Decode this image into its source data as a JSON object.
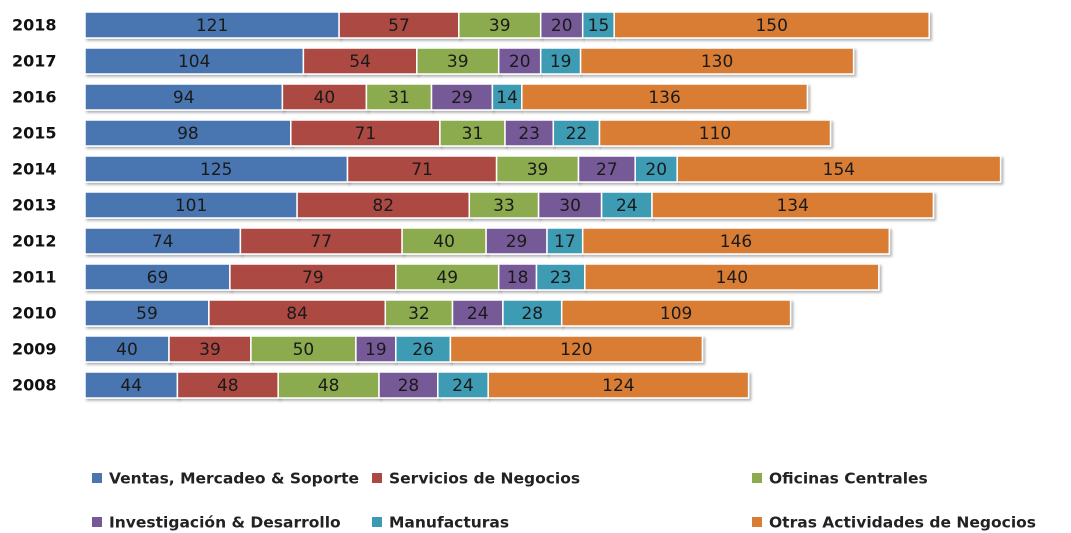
{
  "chart_data": {
    "type": "stacked-bar-horizontal",
    "categories": [
      "2018",
      "2017",
      "2016",
      "2015",
      "2014",
      "2013",
      "2012",
      "2011",
      "2010",
      "2009",
      "2008"
    ],
    "series": [
      {
        "name": "Ventas, Mercadeo & Soporte",
        "color": "#4a76b0",
        "values": [
          121,
          104,
          94,
          98,
          125,
          101,
          74,
          69,
          59,
          40,
          44
        ]
      },
      {
        "name": "Servicios de Negocios",
        "color": "#ac4843",
        "values": [
          57,
          54,
          40,
          71,
          71,
          82,
          77,
          79,
          84,
          39,
          48
        ]
      },
      {
        "name": "Oficinas Centrales",
        "color": "#8cab4f",
        "values": [
          39,
          39,
          31,
          31,
          39,
          33,
          40,
          49,
          32,
          50,
          48
        ]
      },
      {
        "name": "Investigación & Desarrollo",
        "color": "#765a97",
        "values": [
          20,
          20,
          29,
          23,
          27,
          30,
          29,
          18,
          24,
          19,
          28
        ]
      },
      {
        "name": "Manufacturas",
        "color": "#3c9bb3",
        "values": [
          15,
          19,
          14,
          22,
          20,
          24,
          17,
          23,
          28,
          26,
          24
        ]
      },
      {
        "name": "Otras Actividades de Negocios",
        "color": "#d97d35",
        "values": [
          150,
          130,
          136,
          110,
          154,
          134,
          146,
          140,
          109,
          120,
          124
        ]
      }
    ]
  }
}
